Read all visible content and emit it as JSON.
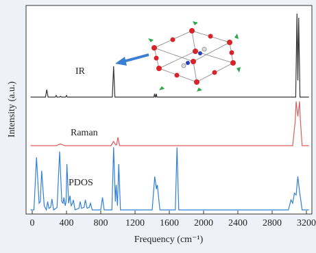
{
  "chart_data": {
    "type": "line",
    "x_label": "Frequency (cm⁻¹)",
    "y_label": "Intensity (a.u.)",
    "xlim": [
      -72,
      3264
    ],
    "xticks": [
      0,
      400,
      800,
      1200,
      1600,
      2000,
      2400,
      2800,
      3200
    ],
    "series": [
      {
        "name": "IR",
        "color": "#333333",
        "x": [
          -20,
          155,
          170,
          185,
          270,
          280,
          290,
          320,
          330,
          340,
          390,
          400,
          410,
          935,
          950,
          965,
          1420,
          1428,
          1436,
          1440,
          1448,
          1456,
          3075,
          3090,
          3100,
          3110,
          3125,
          3230
        ],
        "values": [
          0,
          0,
          9,
          0,
          0,
          2,
          0,
          0,
          1,
          0,
          0,
          2,
          0,
          0,
          37,
          0,
          0,
          4,
          0,
          0,
          4,
          0,
          0,
          100,
          20,
          95,
          0,
          0
        ]
      },
      {
        "name": "Raman",
        "color": "#e05a5a",
        "x": [
          -20,
          280,
          330,
          380,
          920,
          950,
          975,
          985,
          1000,
          1020,
          3040,
          3070,
          3080,
          3100,
          3120,
          3130,
          3150,
          3230
        ],
        "values": [
          0,
          0,
          2,
          0,
          0,
          5,
          1,
          1,
          10,
          0,
          0,
          30,
          53,
          35,
          53,
          30,
          0,
          0
        ]
      },
      {
        "name": "PDOS",
        "color": "#2f7fd6",
        "x": [
          -20,
          20,
          50,
          80,
          95,
          110,
          140,
          165,
          180,
          195,
          215,
          230,
          250,
          290,
          320,
          345,
          360,
          370,
          385,
          395,
          405,
          425,
          440,
          455,
          470,
          480,
          500,
          545,
          560,
          575,
          605,
          620,
          640,
          665,
          680,
          700,
          800,
          820,
          840,
          930,
          950,
          970,
          980,
          995,
          1010,
          1030,
          1400,
          1430,
          1450,
          1460,
          1490,
          1670,
          1690,
          1710,
          2990,
          3020,
          3040,
          3060,
          3080,
          3100,
          3120,
          3130,
          3150,
          3230
        ],
        "values": [
          0,
          0,
          63,
          8,
          10,
          47,
          5,
          0,
          10,
          2,
          3,
          13,
          0,
          3,
          70,
          10,
          8,
          15,
          5,
          10,
          55,
          8,
          17,
          5,
          8,
          12,
          0,
          2,
          10,
          2,
          3,
          12,
          2,
          3,
          8,
          0,
          0,
          15,
          0,
          0,
          75,
          10,
          30,
          5,
          55,
          0,
          0,
          40,
          25,
          30,
          0,
          0,
          75,
          0,
          0,
          12,
          8,
          20,
          18,
          40,
          22,
          15,
          0,
          0
        ]
      }
    ]
  }
}
